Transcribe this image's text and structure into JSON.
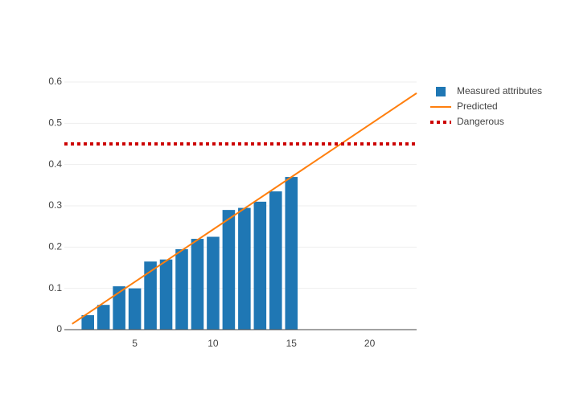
{
  "chart_data": {
    "type": "combo",
    "series": [
      {
        "name": "Measured attributes",
        "type": "bar",
        "color": "#1f77b4",
        "x": [
          2,
          3,
          4,
          5,
          6,
          7,
          8,
          9,
          10,
          11,
          12,
          13,
          14,
          15
        ],
        "values": [
          0.035,
          0.06,
          0.105,
          0.1,
          0.165,
          0.17,
          0.195,
          0.22,
          0.225,
          0.29,
          0.295,
          0.31,
          0.335,
          0.37
        ]
      },
      {
        "name": "Predicted",
        "type": "line",
        "color": "#ff7f0e",
        "dash": "solid",
        "x": [
          1,
          23
        ],
        "values": [
          0.014,
          0.573
        ]
      },
      {
        "name": "Dangerous",
        "type": "line",
        "color": "#cc0000",
        "dash": "dot",
        "x": [
          0.5,
          23
        ],
        "values": [
          0.45,
          0.45
        ]
      }
    ],
    "xlim": [
      0.5,
      23
    ],
    "xticks": [
      5,
      10,
      15,
      20
    ],
    "ylim": [
      0,
      0.62
    ],
    "yticks": [
      0,
      0.1,
      0.2,
      0.3,
      0.4,
      0.5,
      0.6
    ],
    "grid": true,
    "legend": "top-right"
  }
}
